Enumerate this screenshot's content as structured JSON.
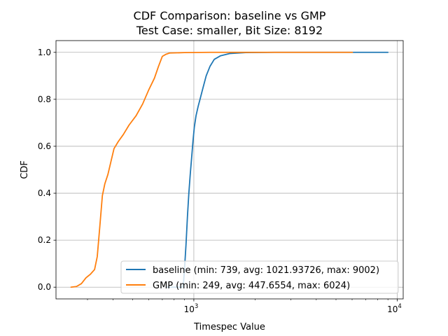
{
  "chart_data": {
    "type": "line",
    "title": "CDF Comparison: baseline vs GMP",
    "subtitle": "Test Case: smaller, Bit Size: 8192",
    "xlabel": "Timespec Value",
    "ylabel": "CDF",
    "xscale": "log",
    "xlim": [
      210,
      10700
    ],
    "ylim": [
      -0.05,
      1.05
    ],
    "grid": true,
    "legend_position": "lower right",
    "x_ticks": [
      {
        "value": 1000,
        "base": "10",
        "exponent": "3"
      },
      {
        "value": 10000,
        "base": "10",
        "exponent": "4"
      }
    ],
    "y_ticks": [
      "0.0",
      "0.2",
      "0.4",
      "0.6",
      "0.8",
      "1.0"
    ],
    "series": [
      {
        "name": "baseline (min: 739, avg: 1021.93726, max: 9002)",
        "color": "#1f77b4",
        "points": [
          [
            739,
            0.0
          ],
          [
            880,
            0.0
          ],
          [
            890,
            0.02
          ],
          [
            900,
            0.08
          ],
          [
            915,
            0.18
          ],
          [
            930,
            0.3
          ],
          [
            945,
            0.4
          ],
          [
            960,
            0.48
          ],
          [
            975,
            0.55
          ],
          [
            990,
            0.62
          ],
          [
            1005,
            0.68
          ],
          [
            1025,
            0.73
          ],
          [
            1050,
            0.77
          ],
          [
            1080,
            0.81
          ],
          [
            1110,
            0.85
          ],
          [
            1150,
            0.9
          ],
          [
            1200,
            0.94
          ],
          [
            1260,
            0.97
          ],
          [
            1350,
            0.985
          ],
          [
            1500,
            0.995
          ],
          [
            1800,
            0.999
          ],
          [
            2500,
            1.0
          ],
          [
            9002,
            1.0
          ]
        ]
      },
      {
        "name": "GMP (min: 249, avg: 447.6554, max: 6024)",
        "color": "#ff7f0e",
        "points": [
          [
            249,
            0.0
          ],
          [
            265,
            0.003
          ],
          [
            280,
            0.015
          ],
          [
            295,
            0.04
          ],
          [
            310,
            0.055
          ],
          [
            325,
            0.075
          ],
          [
            335,
            0.13
          ],
          [
            345,
            0.26
          ],
          [
            355,
            0.39
          ],
          [
            365,
            0.44
          ],
          [
            378,
            0.48
          ],
          [
            390,
            0.53
          ],
          [
            405,
            0.59
          ],
          [
            425,
            0.62
          ],
          [
            450,
            0.65
          ],
          [
            480,
            0.69
          ],
          [
            520,
            0.73
          ],
          [
            560,
            0.78
          ],
          [
            600,
            0.84
          ],
          [
            640,
            0.89
          ],
          [
            670,
            0.94
          ],
          [
            700,
            0.983
          ],
          [
            730,
            0.992
          ],
          [
            760,
            0.997
          ],
          [
            900,
            0.999
          ],
          [
            1200,
            1.0
          ],
          [
            6024,
            1.0
          ]
        ]
      }
    ]
  }
}
